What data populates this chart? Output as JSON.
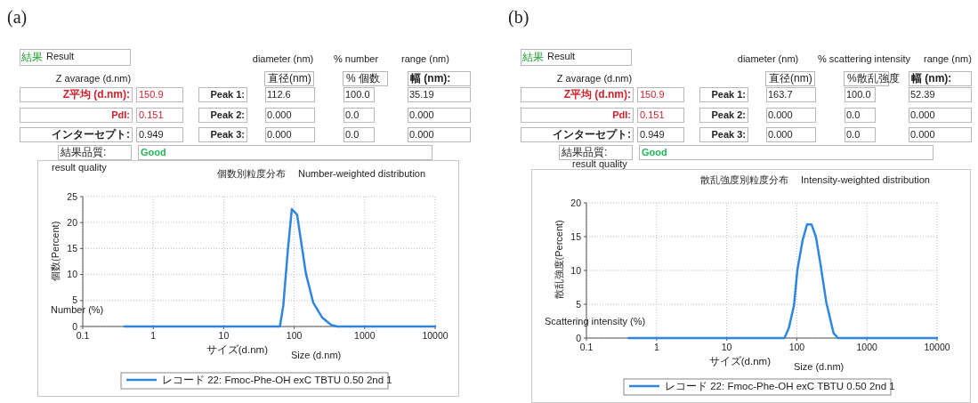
{
  "chart_data": [
    {
      "type": "other",
      "annotations": [
        "(a)",
        "結果",
        "Result",
        "diameter (nm)",
        "% number",
        "range (nm)",
        "Z avarage (d.nm)",
        "直径(nm)",
        "% 個数",
        "幅 (nm):",
        "Z平均 (d.nm):",
        "150.9",
        "Peak 1:",
        "112.6",
        "100.0",
        "35.19",
        "PdI:",
        "0.151",
        "Peak 2:",
        "0.000",
        "0.0",
        "0.000",
        "インターセプト:",
        "0.949",
        "Peak 3:",
        "0.000",
        "0.0",
        "0.000",
        "結果品質:",
        "Good",
        "result quality"
      ]
    },
    {
      "type": "line",
      "title": "個数別粒度分布",
      "subtitle": "Number-weighted distribution",
      "xlabel": "サイズ(d.nm)",
      "ylabel": "個数(Percent)",
      "annotations": [
        "Number (%)",
        "Size (d.nm)"
      ],
      "log": "x",
      "grid": true,
      "legend": "bottom",
      "xlim": [
        0.1,
        10000
      ],
      "xticks": [
        0.1,
        1,
        10,
        100,
        1000,
        10000
      ],
      "ylim": [
        0,
        25
      ],
      "yticks": [
        0,
        5,
        10,
        15,
        20,
        25
      ],
      "series": [
        {
          "name": "レコード 22: Fmoc-Phe-OH exC TBTU 0.50 2nd 1",
          "color": "#2f86e0",
          "x": [
            0.39,
            1,
            10,
            62.7,
            70,
            81.5,
            92.5,
            110,
            130,
            146,
            186,
            250,
            335,
            407,
            1000,
            10000
          ],
          "values": [
            0,
            0,
            0,
            0,
            4.0,
            14.9,
            22.6,
            21.5,
            14.9,
            10.3,
            4.6,
            1.7,
            0.3,
            0,
            0,
            0
          ]
        }
      ]
    },
    {
      "type": "other",
      "annotations": [
        "(b)",
        "結果",
        "Result",
        "diameter (nm)",
        "% scattering intensity",
        "range (nm)",
        "Z avarage (d.nm)",
        "直径(nm)",
        "%散乱強度",
        "幅 (nm):",
        "Z平均 (d.nm):",
        "150.9",
        "Peak 1:",
        "163.7",
        "100.0",
        "52.39",
        "PdI:",
        "0.151",
        "Peak 2:",
        "0.000",
        "0.0",
        "0.000",
        "インターセプト:",
        "0.949",
        "Peak 3:",
        "0.000",
        "0.0",
        "0.000",
        "結果品質:",
        "Good",
        "result quality"
      ]
    },
    {
      "type": "line",
      "title": "散乱強度別粒度分布",
      "subtitle": "Intensity-weighted distribution",
      "xlabel": "サイズ(d.nm)",
      "ylabel": "散乱強度(Percent)",
      "annotations": [
        "Scattering intensity (%)",
        "Size (d.nm)"
      ],
      "log": "x",
      "grid": true,
      "legend": "bottom",
      "xlim": [
        0.1,
        10000
      ],
      "xticks": [
        0.1,
        1,
        10,
        100,
        1000,
        10000
      ],
      "ylim": [
        0,
        20
      ],
      "yticks": [
        0,
        5,
        10,
        15,
        20
      ],
      "series": [
        {
          "name": "レコード 22: Fmoc-Phe-OH exC TBTU 0.50 2nd 1",
          "color": "#2f86e0",
          "x": [
            0.4,
            1,
            10,
            66.7,
            77,
            91,
            102,
            121,
            140,
            162,
            187,
            217,
            263,
            335,
            387,
            1000,
            10000
          ],
          "values": [
            0,
            0,
            0,
            0,
            1.5,
            4.8,
            10.1,
            14.5,
            16.8,
            16.8,
            15,
            11,
            5.3,
            0.7,
            0,
            0,
            0
          ]
        }
      ]
    }
  ]
}
